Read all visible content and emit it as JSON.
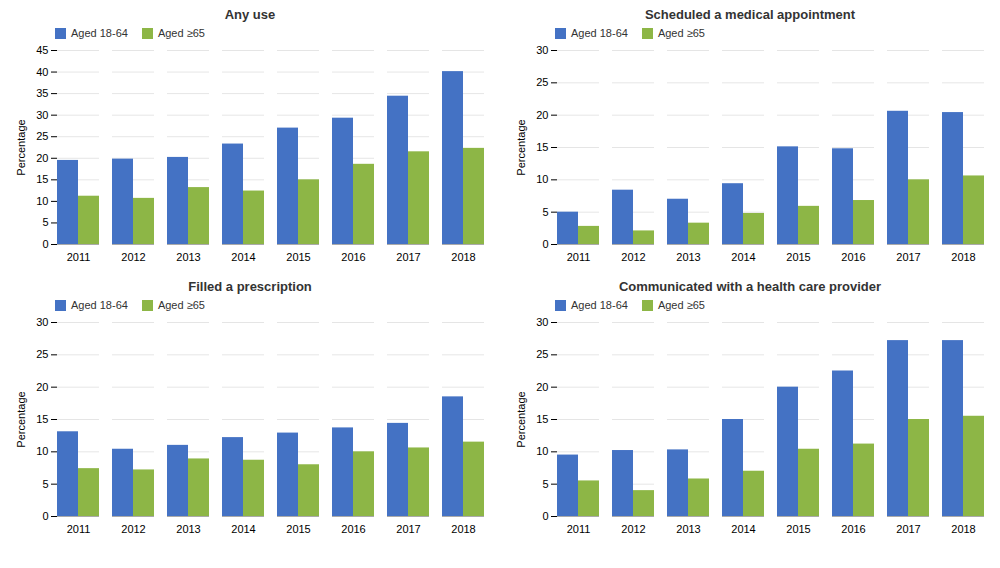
{
  "chart_data": [
    {
      "type": "bar",
      "title": "Any use",
      "categories": [
        "2011",
        "2012",
        "2013",
        "2014",
        "2015",
        "2016",
        "2017",
        "2018"
      ],
      "series": [
        {
          "name": "Aged 18-64",
          "color": "#4472C4",
          "values": [
            19.5,
            19.8,
            20.2,
            23.3,
            27.0,
            29.3,
            34.4,
            40.1
          ]
        },
        {
          "name": "Aged ≥65",
          "color": "#8DB646",
          "values": [
            11.2,
            10.7,
            13.2,
            12.4,
            15.0,
            18.6,
            21.5,
            22.3
          ]
        }
      ],
      "y_label": "Percentage",
      "ylim": [
        0,
        45
      ],
      "yticks": [
        0,
        5,
        10,
        15,
        20,
        25,
        30,
        35,
        40,
        45
      ],
      "grid": true,
      "legend": "upper left"
    },
    {
      "type": "bar",
      "title": "Scheduled a medical appointment",
      "categories": [
        "2011",
        "2012",
        "2013",
        "2014",
        "2015",
        "2016",
        "2017",
        "2018"
      ],
      "series": [
        {
          "name": "Aged 18-64",
          "color": "#4472C4",
          "values": [
            5.0,
            8.4,
            7.0,
            9.4,
            15.1,
            14.8,
            20.6,
            20.4
          ]
        },
        {
          "name": "Aged ≥65",
          "color": "#8DB646",
          "values": [
            2.8,
            2.1,
            3.3,
            4.8,
            5.9,
            6.8,
            10.0,
            10.6
          ]
        }
      ],
      "y_label": "Percentage",
      "ylim": [
        0,
        30
      ],
      "yticks": [
        0,
        5,
        10,
        15,
        20,
        25,
        30
      ],
      "grid": true,
      "legend": "upper left"
    },
    {
      "type": "bar",
      "title": "Filled a prescription",
      "categories": [
        "2011",
        "2012",
        "2013",
        "2014",
        "2015",
        "2016",
        "2017",
        "2018"
      ],
      "series": [
        {
          "name": "Aged 18-64",
          "color": "#4472C4",
          "values": [
            13.1,
            10.4,
            11.0,
            12.2,
            12.9,
            13.7,
            14.4,
            18.5
          ]
        },
        {
          "name": "Aged ≥65",
          "color": "#8DB646",
          "values": [
            7.4,
            7.2,
            8.9,
            8.7,
            8.0,
            10.0,
            10.6,
            11.5
          ]
        }
      ],
      "y_label": "Percentage",
      "ylim": [
        0,
        30
      ],
      "yticks": [
        0,
        5,
        10,
        15,
        20,
        25,
        30
      ],
      "grid": true,
      "legend": "upper left"
    },
    {
      "type": "bar",
      "title": "Communicated with a health care provider",
      "categories": [
        "2011",
        "2012",
        "2013",
        "2014",
        "2015",
        "2016",
        "2017",
        "2018"
      ],
      "series": [
        {
          "name": "Aged 18-64",
          "color": "#4472C4",
          "values": [
            9.5,
            10.2,
            10.3,
            15.0,
            20.0,
            22.5,
            27.2,
            27.2
          ]
        },
        {
          "name": "Aged ≥65",
          "color": "#8DB646",
          "values": [
            5.5,
            4.0,
            5.8,
            7.0,
            10.4,
            11.2,
            15.0,
            15.5
          ]
        }
      ],
      "y_label": "Percentage",
      "ylim": [
        0,
        30
      ],
      "yticks": [
        0,
        5,
        10,
        15,
        20,
        25,
        30
      ],
      "grid": true,
      "legend": "upper left"
    }
  ]
}
